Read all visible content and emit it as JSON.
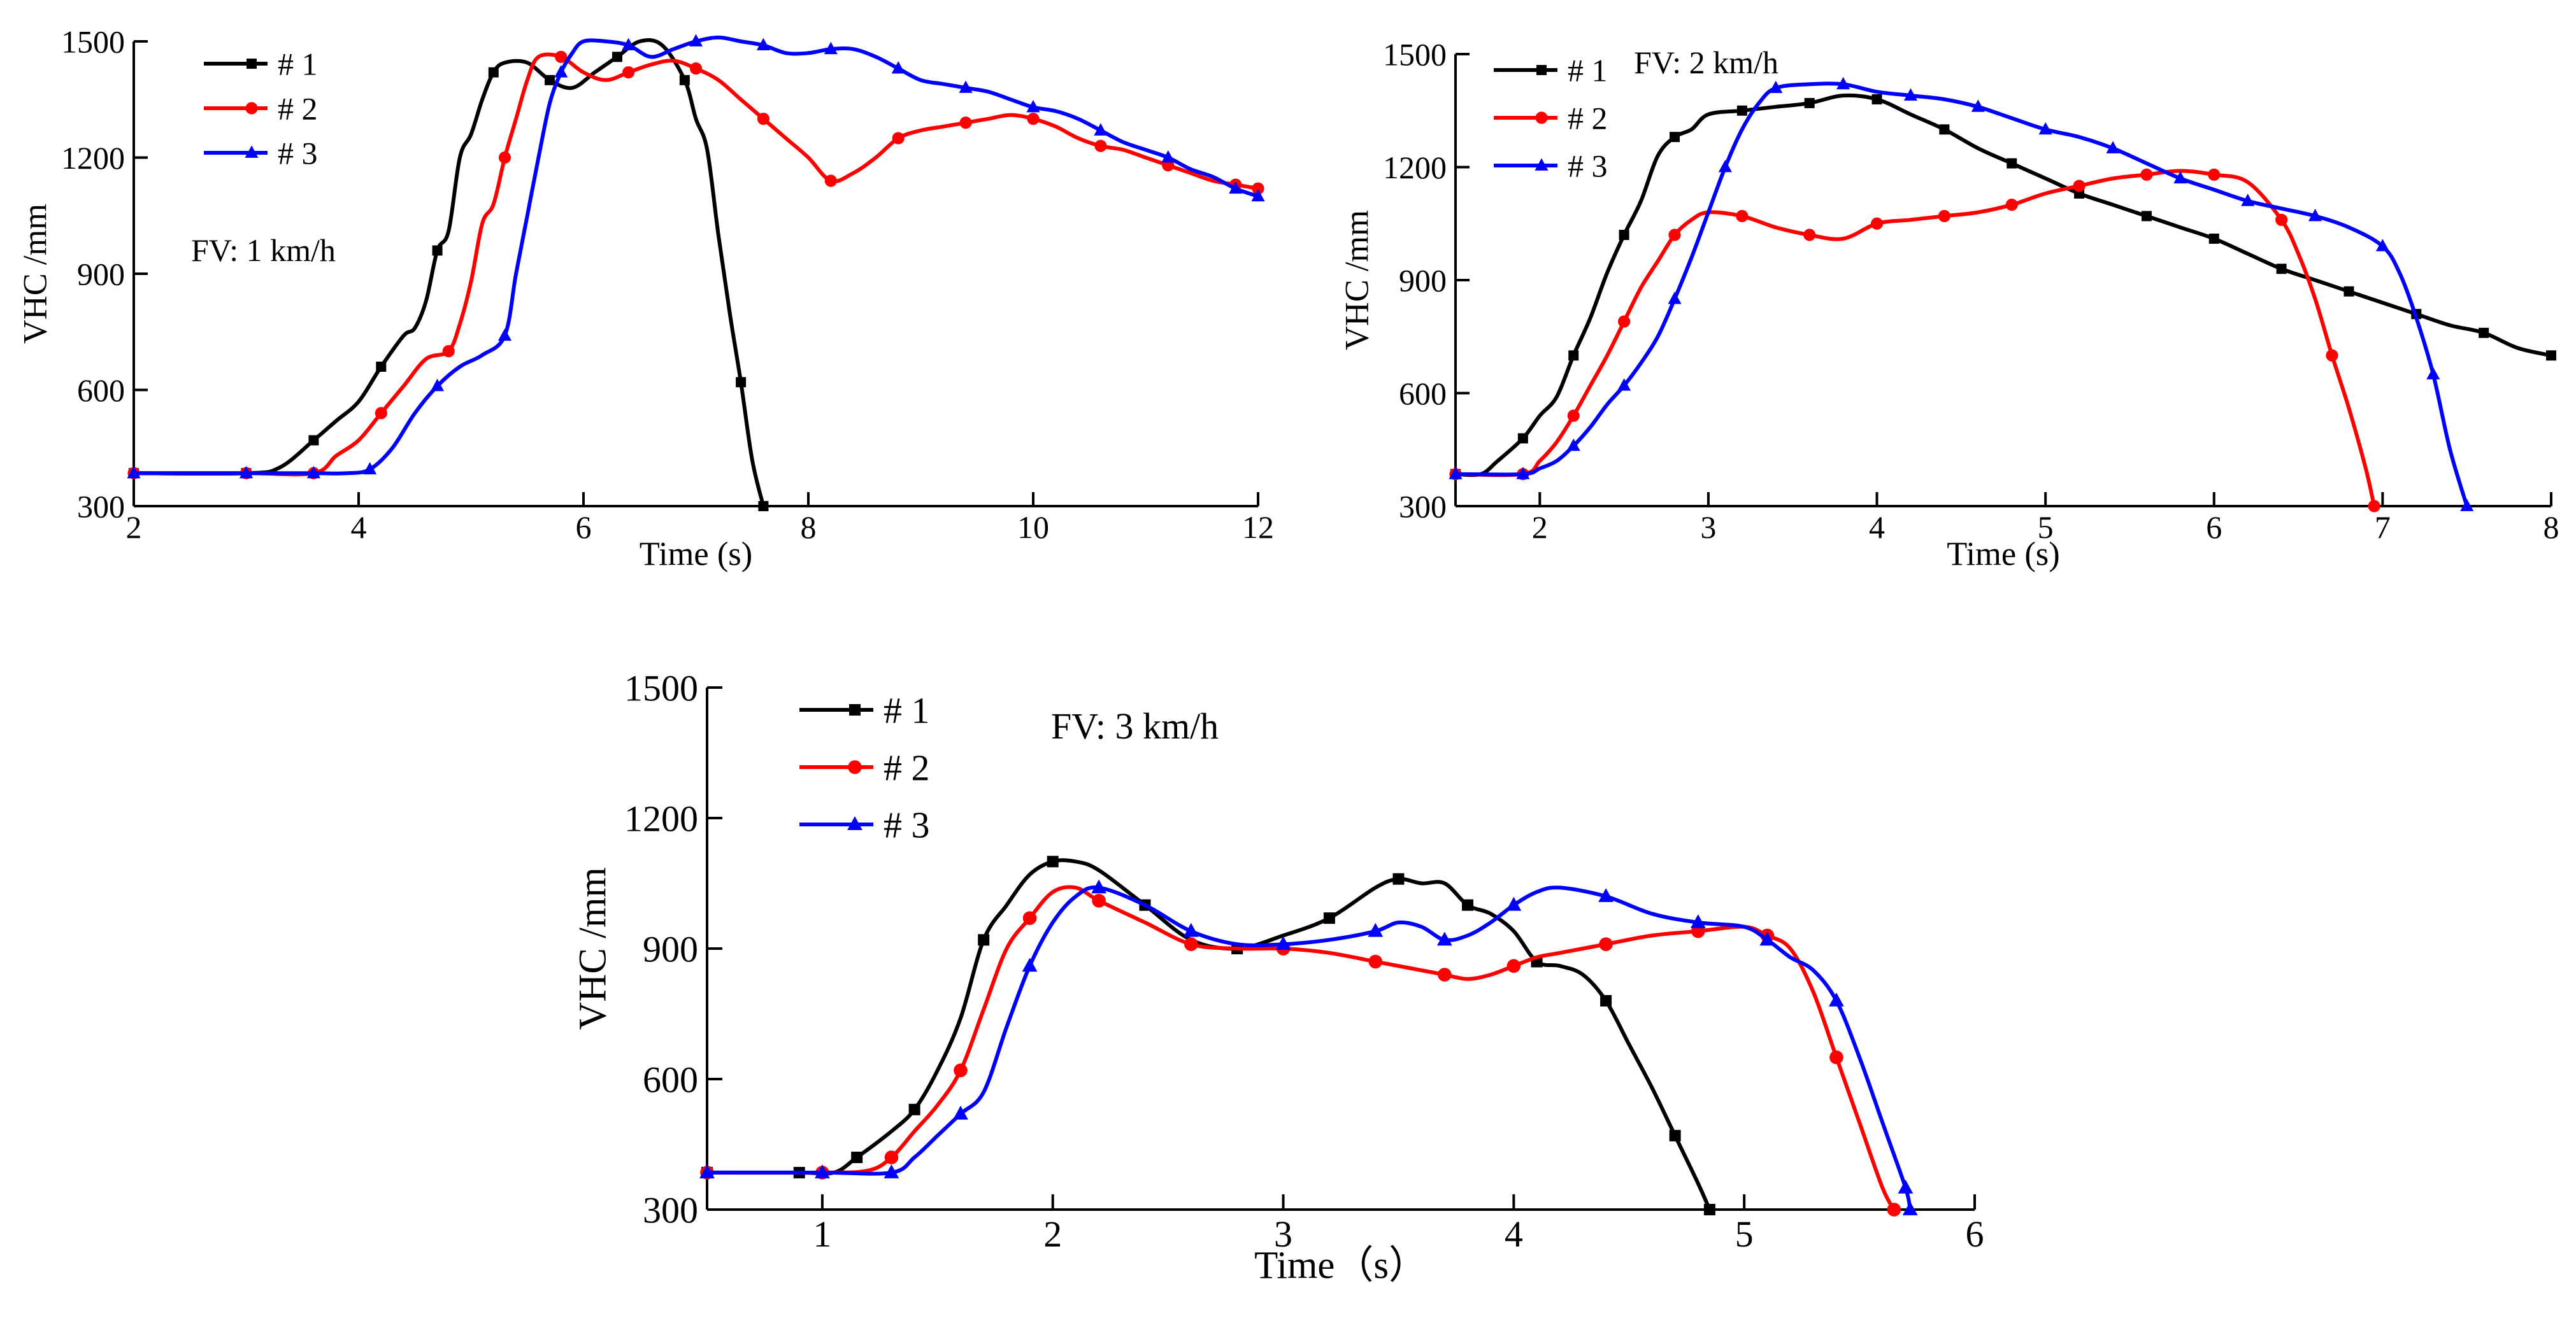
{
  "chart_data": [
    {
      "type": "line",
      "title": "",
      "annotation": "FV: 1 km/h",
      "xlabel": "Time (s)",
      "ylabel": "VHC /mm",
      "xlim": [
        2,
        12
      ],
      "ylim": [
        300,
        1500
      ],
      "xticks": [
        2,
        4,
        6,
        8,
        10,
        12
      ],
      "yticks": [
        300,
        600,
        900,
        1200,
        1500
      ],
      "grid": false,
      "legend_position": "top-left",
      "series": [
        {
          "name": "# 1",
          "color": "#000000",
          "marker": "square",
          "x": [
            2.0,
            3.0,
            3.3,
            3.6,
            3.8,
            4.0,
            4.2,
            4.4,
            4.5,
            4.6,
            4.7,
            4.8,
            4.9,
            5.0,
            5.1,
            5.2,
            5.3,
            5.5,
            5.7,
            5.9,
            6.1,
            6.3,
            6.5,
            6.7,
            6.9,
            7.0,
            7.1,
            7.2,
            7.3,
            7.4,
            7.5,
            7.6
          ],
          "y": [
            385,
            385,
            400,
            470,
            520,
            570,
            660,
            740,
            760,
            830,
            960,
            1010,
            1200,
            1260,
            1350,
            1420,
            1445,
            1445,
            1400,
            1380,
            1420,
            1460,
            1500,
            1490,
            1400,
            1300,
            1220,
            1000,
            800,
            620,
            420,
            300
          ]
        },
        {
          "name": "# 2",
          "color": "#ff0000",
          "marker": "circle",
          "x": [
            2.0,
            3.0,
            3.6,
            3.8,
            4.0,
            4.2,
            4.4,
            4.6,
            4.8,
            4.9,
            5.0,
            5.1,
            5.2,
            5.3,
            5.4,
            5.5,
            5.6,
            5.8,
            6.0,
            6.2,
            6.4,
            6.6,
            6.8,
            7.0,
            7.2,
            7.4,
            7.6,
            7.8,
            8.0,
            8.2,
            8.4,
            8.6,
            8.8,
            9.0,
            9.2,
            9.4,
            9.6,
            9.8,
            10.0,
            10.2,
            10.4,
            10.6,
            10.8,
            11.0,
            11.2,
            11.4,
            11.6,
            11.8,
            12.0
          ],
          "y": [
            385,
            385,
            385,
            430,
            470,
            540,
            610,
            680,
            700,
            770,
            880,
            1030,
            1080,
            1200,
            1300,
            1400,
            1460,
            1460,
            1420,
            1400,
            1420,
            1440,
            1450,
            1430,
            1400,
            1350,
            1300,
            1250,
            1200,
            1140,
            1160,
            1200,
            1250,
            1270,
            1280,
            1290,
            1300,
            1310,
            1300,
            1280,
            1250,
            1230,
            1220,
            1200,
            1180,
            1160,
            1140,
            1130,
            1120
          ]
        },
        {
          "name": "# 3",
          "color": "#0000ff",
          "marker": "triangle",
          "x": [
            2.0,
            3.0,
            3.6,
            3.9,
            4.1,
            4.3,
            4.5,
            4.7,
            4.9,
            5.1,
            5.3,
            5.4,
            5.5,
            5.6,
            5.7,
            5.8,
            5.9,
            6.0,
            6.2,
            6.4,
            6.6,
            6.8,
            7.0,
            7.2,
            7.4,
            7.6,
            7.8,
            8.0,
            8.2,
            8.4,
            8.6,
            8.8,
            9.0,
            9.2,
            9.4,
            9.6,
            9.8,
            10.0,
            10.2,
            10.4,
            10.6,
            10.8,
            11.0,
            11.2,
            11.4,
            11.6,
            11.8,
            12.0
          ],
          "y": [
            385,
            385,
            385,
            385,
            395,
            450,
            540,
            610,
            660,
            690,
            740,
            900,
            1050,
            1200,
            1340,
            1420,
            1470,
            1500,
            1500,
            1490,
            1460,
            1480,
            1500,
            1510,
            1500,
            1490,
            1470,
            1470,
            1480,
            1480,
            1460,
            1430,
            1400,
            1390,
            1380,
            1370,
            1350,
            1330,
            1320,
            1300,
            1270,
            1240,
            1220,
            1200,
            1170,
            1150,
            1120,
            1100
          ]
        }
      ]
    },
    {
      "type": "line",
      "title": "",
      "annotation": "FV: 2 km/h",
      "xlabel": "Time (s)",
      "ylabel": "VHC /mm",
      "xlim": [
        1.5,
        8
      ],
      "ylim": [
        300,
        1500
      ],
      "xticks": [
        2,
        3,
        4,
        5,
        6,
        7,
        8
      ],
      "yticks": [
        300,
        600,
        900,
        1200,
        1500
      ],
      "grid": false,
      "legend_position": "top-left",
      "series": [
        {
          "name": "# 1",
          "color": "#000000",
          "marker": "square",
          "x": [
            1.5,
            1.65,
            1.75,
            1.9,
            2.0,
            2.1,
            2.2,
            2.3,
            2.4,
            2.5,
            2.6,
            2.7,
            2.8,
            2.9,
            3.0,
            3.2,
            3.4,
            3.6,
            3.8,
            4.0,
            4.2,
            4.4,
            4.6,
            4.8,
            5.0,
            5.2,
            5.4,
            5.6,
            5.8,
            6.0,
            6.2,
            6.4,
            6.6,
            6.8,
            7.0,
            7.2,
            7.4,
            7.6,
            7.8,
            8.0
          ],
          "y": [
            385,
            385,
            420,
            480,
            540,
            590,
            700,
            800,
            920,
            1020,
            1110,
            1230,
            1280,
            1300,
            1340,
            1350,
            1360,
            1370,
            1390,
            1380,
            1340,
            1300,
            1250,
            1210,
            1170,
            1130,
            1100,
            1070,
            1040,
            1010,
            970,
            930,
            900,
            870,
            840,
            810,
            780,
            760,
            720,
            700
          ]
        },
        {
          "name": "# 2",
          "color": "#ff0000",
          "marker": "circle",
          "x": [
            1.5,
            1.9,
            2.0,
            2.1,
            2.2,
            2.3,
            2.4,
            2.5,
            2.6,
            2.7,
            2.8,
            2.9,
            3.0,
            3.2,
            3.4,
            3.6,
            3.8,
            4.0,
            4.2,
            4.4,
            4.6,
            4.8,
            5.0,
            5.2,
            5.4,
            5.6,
            5.8,
            6.0,
            6.2,
            6.4,
            6.5,
            6.6,
            6.7,
            6.8,
            6.9,
            6.95
          ],
          "y": [
            385,
            385,
            420,
            470,
            540,
            620,
            700,
            790,
            880,
            950,
            1020,
            1060,
            1080,
            1070,
            1040,
            1020,
            1010,
            1050,
            1060,
            1070,
            1080,
            1100,
            1130,
            1150,
            1170,
            1180,
            1190,
            1180,
            1160,
            1060,
            970,
            850,
            700,
            560,
            400,
            300
          ]
        },
        {
          "name": "# 3",
          "color": "#0000ff",
          "marker": "triangle",
          "x": [
            1.5,
            1.9,
            2.0,
            2.1,
            2.2,
            2.3,
            2.4,
            2.5,
            2.6,
            2.7,
            2.8,
            2.9,
            3.0,
            3.1,
            3.2,
            3.3,
            3.4,
            3.6,
            3.8,
            4.0,
            4.2,
            4.4,
            4.6,
            4.8,
            5.0,
            5.2,
            5.4,
            5.6,
            5.8,
            6.0,
            6.2,
            6.4,
            6.6,
            6.8,
            7.0,
            7.1,
            7.2,
            7.3,
            7.4,
            7.5
          ],
          "y": [
            385,
            385,
            400,
            420,
            460,
            510,
            570,
            620,
            680,
            750,
            850,
            960,
            1080,
            1200,
            1300,
            1370,
            1410,
            1420,
            1420,
            1400,
            1390,
            1380,
            1360,
            1330,
            1300,
            1280,
            1250,
            1210,
            1170,
            1140,
            1110,
            1090,
            1070,
            1040,
            990,
            920,
            800,
            650,
            450,
            300
          ]
        }
      ]
    },
    {
      "type": "line",
      "title": "",
      "annotation": "FV: 3 km/h",
      "xlabel": "Time（s）",
      "ylabel": "VHC /mm",
      "xlim": [
        0.5,
        6
      ],
      "ylim": [
        300,
        1500
      ],
      "xticks": [
        1,
        2,
        3,
        4,
        5,
        6
      ],
      "yticks": [
        300,
        600,
        900,
        1200,
        1500
      ],
      "grid": false,
      "legend_position": "top-left",
      "series": [
        {
          "name": "# 1",
          "color": "#000000",
          "marker": "square",
          "x": [
            0.5,
            0.9,
            1.05,
            1.15,
            1.3,
            1.4,
            1.5,
            1.6,
            1.7,
            1.8,
            1.9,
            2.0,
            2.1,
            2.2,
            2.4,
            2.6,
            2.8,
            3.0,
            3.2,
            3.4,
            3.5,
            3.6,
            3.7,
            3.8,
            3.9,
            4.0,
            4.1,
            4.2,
            4.3,
            4.4,
            4.5,
            4.6,
            4.7,
            4.8,
            4.85
          ],
          "y": [
            385,
            385,
            385,
            420,
            480,
            530,
            620,
            740,
            920,
            1000,
            1070,
            1100,
            1100,
            1080,
            1000,
            920,
            900,
            930,
            970,
            1040,
            1060,
            1050,
            1050,
            1000,
            980,
            940,
            870,
            860,
            840,
            780,
            680,
            580,
            470,
            360,
            300
          ]
        },
        {
          "name": "# 2",
          "color": "#ff0000",
          "marker": "circle",
          "x": [
            0.5,
            1.0,
            1.2,
            1.3,
            1.4,
            1.5,
            1.6,
            1.7,
            1.8,
            1.9,
            2.0,
            2.1,
            2.2,
            2.4,
            2.6,
            2.8,
            3.0,
            3.2,
            3.4,
            3.5,
            3.6,
            3.7,
            3.8,
            3.9,
            4.0,
            4.1,
            4.2,
            4.4,
            4.6,
            4.8,
            5.0,
            5.1,
            5.2,
            5.3,
            5.4,
            5.5,
            5.6,
            5.65
          ],
          "y": [
            385,
            385,
            390,
            420,
            480,
            540,
            620,
            760,
            900,
            970,
            1030,
            1040,
            1010,
            960,
            910,
            900,
            900,
            890,
            870,
            860,
            850,
            840,
            830,
            840,
            860,
            880,
            890,
            910,
            930,
            940,
            950,
            930,
            900,
            800,
            650,
            500,
            350,
            300
          ]
        },
        {
          "name": "# 3",
          "color": "#0000ff",
          "marker": "triangle",
          "x": [
            0.5,
            1.0,
            1.3,
            1.4,
            1.5,
            1.6,
            1.7,
            1.8,
            1.9,
            2.0,
            2.1,
            2.2,
            2.4,
            2.6,
            2.8,
            3.0,
            3.2,
            3.4,
            3.5,
            3.6,
            3.7,
            3.8,
            3.9,
            4.0,
            4.1,
            4.2,
            4.4,
            4.6,
            4.8,
            5.0,
            5.1,
            5.2,
            5.3,
            5.4,
            5.5,
            5.6,
            5.7,
            5.72
          ],
          "y": [
            385,
            385,
            385,
            420,
            470,
            520,
            570,
            720,
            860,
            960,
            1020,
            1040,
            1000,
            940,
            910,
            910,
            920,
            940,
            960,
            950,
            920,
            930,
            960,
            1000,
            1030,
            1040,
            1020,
            980,
            960,
            950,
            920,
            880,
            850,
            780,
            650,
            500,
            350,
            300
          ]
        }
      ]
    }
  ]
}
